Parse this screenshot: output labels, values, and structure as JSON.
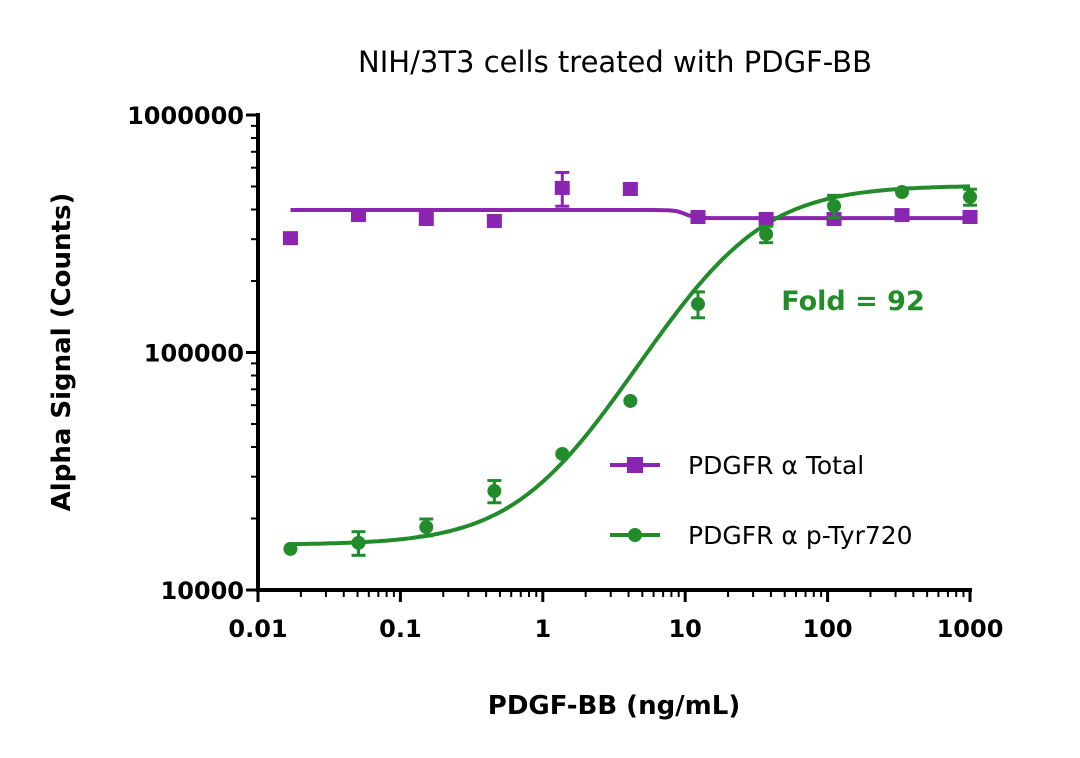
{
  "chart_data": {
    "type": "scatter",
    "title": "NIH/3T3 cells treated with PDGF-BB",
    "xlabel": "PDGF-BB (ng/mL)",
    "ylabel": "Alpha Signal (Counts)",
    "xscale": "log",
    "yscale": "log",
    "xlim": [
      0.01,
      1000
    ],
    "ylim": [
      10000,
      1000000
    ],
    "xticks": [
      "0.01",
      "0.1",
      "1",
      "10",
      "100",
      "1000"
    ],
    "yticks": [
      "10000",
      "100000",
      "1000000"
    ],
    "grid": false,
    "legend_position": "center-right",
    "annotation": {
      "text": "Fold = 92",
      "color": "#228B2A"
    },
    "x": [
      0.0169,
      0.0508,
      0.152,
      0.457,
      1.37,
      4.12,
      12.3,
      37.0,
      111,
      333,
      1000
    ],
    "series": [
      {
        "name": "PDGFR α Total",
        "color": "#8A25B1",
        "marker": "square",
        "values": [
          303000,
          379000,
          365000,
          358000,
          493000,
          488000,
          372000,
          365000,
          365000,
          379000,
          372000
        ],
        "errors": [
          0,
          0,
          0,
          0,
          80000,
          25000,
          0,
          20000,
          0,
          0,
          0
        ],
        "fit": {
          "type": "step",
          "low_plateau": 398000,
          "high_plateau": 368000,
          "transition": 10
        }
      },
      {
        "name": "PDGFR α p-Tyr720",
        "color": "#228B2A",
        "marker": "circle",
        "values": [
          14900,
          15800,
          18400,
          26100,
          37400,
          62500,
          160000,
          315000,
          414000,
          474000,
          452000
        ],
        "errors": [
          0,
          1800,
          1500,
          2800,
          0,
          0,
          20000,
          25000,
          45000,
          0,
          35000
        ],
        "fit": {
          "type": "4PL",
          "bottom": 15500,
          "top": 505000,
          "ec50": 20,
          "hill": 1.2
        }
      }
    ]
  }
}
